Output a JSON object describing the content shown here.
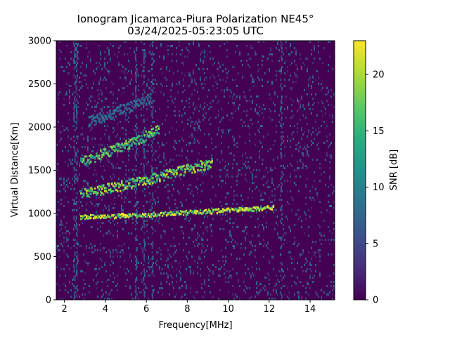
{
  "chart_data": {
    "type": "heatmap",
    "title": "Ionogram Jicamarca-Piura Polarization NE45°",
    "subtitle": "03/24/2025-05:23:05 UTC",
    "xlabel": "Frequency[MHz]",
    "ylabel": "Virtual Distance[Km]",
    "xlim": [
      1.6,
      15.2
    ],
    "ylim": [
      0,
      3000
    ],
    "xticks": [
      2,
      4,
      6,
      8,
      10,
      12,
      14
    ],
    "yticks": [
      0,
      500,
      1000,
      1500,
      2000,
      2500,
      3000
    ],
    "colorbar": {
      "label": "SNR [dB]",
      "colormap": "viridis",
      "range": [
        0,
        23
      ],
      "ticks": [
        0,
        5,
        10,
        15,
        20
      ]
    },
    "traces": [
      {
        "f_start": 2.8,
        "f_end": 12.2,
        "d_start": 950,
        "d_end": 1060,
        "snr": 22
      },
      {
        "f_start": 2.8,
        "f_end": 9.2,
        "d_start": 1230,
        "d_end": 1580,
        "snr": 20
      },
      {
        "f_start": 2.8,
        "f_end": 6.6,
        "d_start": 1600,
        "d_end": 1960,
        "snr": 18
      },
      {
        "f_start": 3.2,
        "f_end": 6.2,
        "d_start": 2060,
        "d_end": 2330,
        "snr": 9
      }
    ],
    "interference_bands_mhz": [
      2.5,
      2.6,
      5.5,
      5.9,
      6.3,
      12.6
    ]
  }
}
